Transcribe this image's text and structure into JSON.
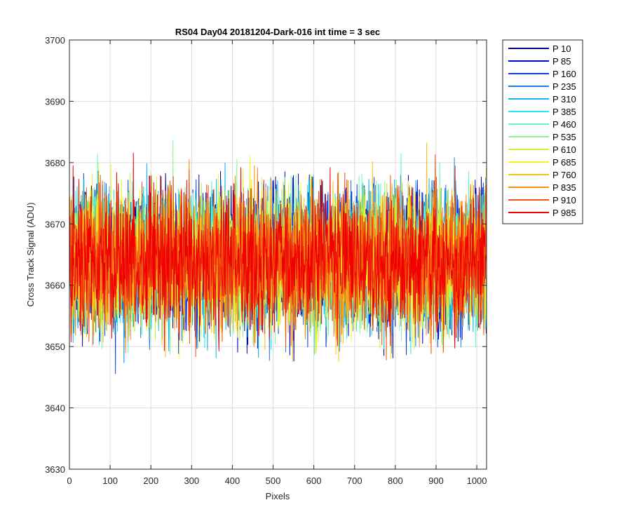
{
  "chart_data": {
    "type": "line",
    "title": "RS04 Day04 20181204-Dark-016 int time = 3 sec",
    "xlabel": "Pixels",
    "ylabel": "Cross Track Signal (ADU)",
    "xlim": [
      0,
      1024
    ],
    "ylim": [
      3630,
      3700
    ],
    "xticks": [
      "0",
      "100",
      "200",
      "300",
      "400",
      "500",
      "600",
      "700",
      "800",
      "900",
      "1000"
    ],
    "yticks": [
      "3630",
      "3640",
      "3650",
      "3660",
      "3670",
      "3680",
      "3690",
      "3700"
    ],
    "grid": true,
    "legend_position": "outside-top-right",
    "n_points": 1024,
    "mean": 3664,
    "noise_std": 5.5,
    "series": [
      {
        "name": "P 10",
        "color": "#00008f"
      },
      {
        "name": "P 85",
        "color": "#0000d6"
      },
      {
        "name": "P 160",
        "color": "#0a3fdc"
      },
      {
        "name": "P 235",
        "color": "#1a82e6"
      },
      {
        "name": "P 310",
        "color": "#12b4ee"
      },
      {
        "name": "P 385",
        "color": "#22e5f0"
      },
      {
        "name": "P 460",
        "color": "#5ff5c9"
      },
      {
        "name": "P 535",
        "color": "#8cf58f"
      },
      {
        "name": "P 610",
        "color": "#c6f53f"
      },
      {
        "name": "P 685",
        "color": "#f7f51e"
      },
      {
        "name": "P 760",
        "color": "#f7c416"
      },
      {
        "name": "P 835",
        "color": "#f78e16"
      },
      {
        "name": "P 910",
        "color": "#f3520f"
      },
      {
        "name": "P 985",
        "color": "#f00000"
      }
    ]
  }
}
